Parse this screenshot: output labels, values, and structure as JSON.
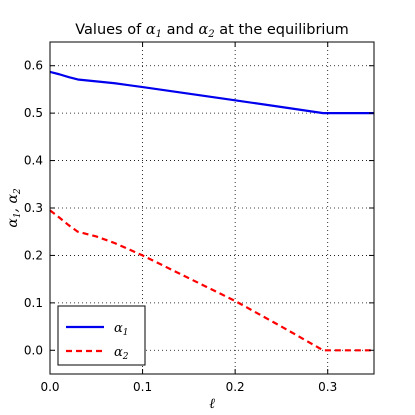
{
  "chart_data": {
    "type": "line",
    "title": {
      "parts": [
        {
          "text": "Values of ",
          "math": false
        },
        {
          "text": "α",
          "math": true
        },
        {
          "text": "1",
          "math": true,
          "sub": true
        },
        {
          "text": " and ",
          "math": false
        },
        {
          "text": "α",
          "math": true
        },
        {
          "text": "2",
          "math": true,
          "sub": true
        },
        {
          "text": " at the equilibrium",
          "math": false
        }
      ]
    },
    "xlabel": "ℓ",
    "ylabel": "α1, α2",
    "xlim": [
      0.0,
      0.35
    ],
    "ylim": [
      -0.05,
      0.65
    ],
    "xticks": [
      0.0,
      0.1,
      0.2,
      0.3
    ],
    "xtick_labels": [
      "0.0",
      "0.1",
      "0.2",
      "0.3"
    ],
    "yticks": [
      0.0,
      0.1,
      0.2,
      0.3,
      0.4,
      0.5,
      0.6
    ],
    "ytick_labels": [
      "0.0",
      "0.1",
      "0.2",
      "0.3",
      "0.4",
      "0.5",
      "0.6"
    ],
    "grid": true,
    "legend_position": "lower-left",
    "series": [
      {
        "name": "α1",
        "name_base": "α",
        "name_sub": "1",
        "color": "#0000ee",
        "style": "solid",
        "x": [
          0.0,
          0.01,
          0.02,
          0.03,
          0.05,
          0.07,
          0.1,
          0.15,
          0.2,
          0.25,
          0.295,
          0.3,
          0.35
        ],
        "y": [
          0.587,
          0.582,
          0.576,
          0.571,
          0.567,
          0.563,
          0.555,
          0.541,
          0.527,
          0.513,
          0.5,
          0.5,
          0.5
        ]
      },
      {
        "name": "α2",
        "name_base": "α",
        "name_sub": "2",
        "color": "#ff0000",
        "style": "dashed",
        "x": [
          0.0,
          0.01,
          0.02,
          0.03,
          0.05,
          0.07,
          0.1,
          0.15,
          0.2,
          0.25,
          0.295,
          0.3,
          0.35
        ],
        "y": [
          0.295,
          0.28,
          0.264,
          0.25,
          0.24,
          0.226,
          0.2,
          0.152,
          0.104,
          0.05,
          0.0,
          0.0,
          0.0
        ]
      }
    ]
  }
}
